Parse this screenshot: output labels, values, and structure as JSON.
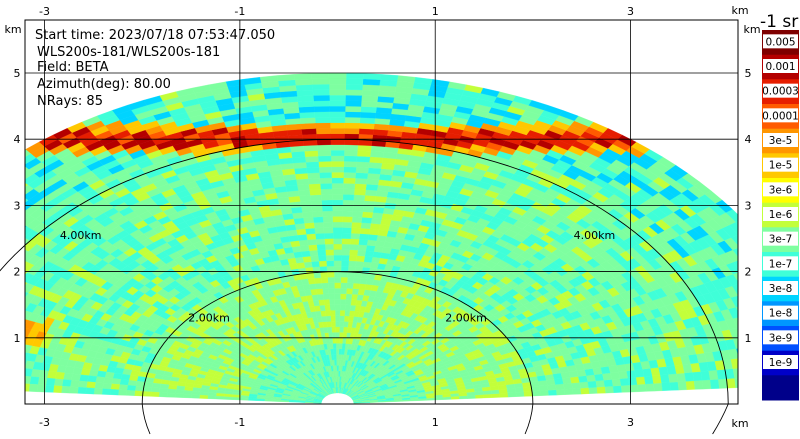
{
  "info": {
    "start_time": "Start time: 2023/07/18 07:53:47.050",
    "instrument": "WLS200s-181/WLS200s-181",
    "field": "Field: BETA",
    "azimuth": "Azimuth(deg): 80.00",
    "nrays": "NRays: 85"
  },
  "units": {
    "axis": "km",
    "colorbar": "-1 sr"
  },
  "ring_labels": [
    "2.00km",
    "4.00km"
  ],
  "chart_data": {
    "type": "heatmap",
    "xlabel": "km",
    "ylabel": "km",
    "xlim": [
      -3.2,
      4.1
    ],
    "ylim": [
      0,
      5.8
    ],
    "x_ticks": [
      -3,
      -1,
      1,
      3
    ],
    "y_ticks": [
      1,
      2,
      3,
      4,
      5
    ],
    "range_rings_km": [
      2,
      4
    ],
    "max_range_km": 5.0,
    "grid": true,
    "colorbar": {
      "labels": [
        "0.005",
        "0.001",
        "0.0003",
        "0.0001",
        "3e-5",
        "1e-5",
        "3e-6",
        "1e-6",
        "3e-7",
        "1e-7",
        "3e-8",
        "1e-8",
        "3e-9",
        "1e-9"
      ],
      "colors": [
        "#7f0000",
        "#b40000",
        "#e61e00",
        "#ff5a00",
        "#ff9600",
        "#ffc800",
        "#ffff00",
        "#c3ff3a",
        "#7effa0",
        "#3fffd8",
        "#00d4ff",
        "#0096ff",
        "#0050ff",
        "#0000c8",
        "#00008a"
      ]
    },
    "description_fields": {
      "background_level": "3e-8",
      "enhanced_layer_height_km": 4.0,
      "enhanced_layer_level": "3e-5"
    }
  }
}
